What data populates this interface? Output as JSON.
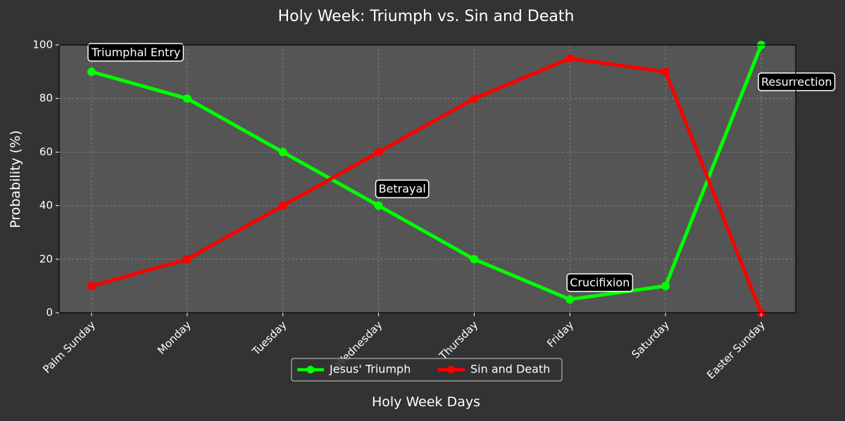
{
  "chart_data": {
    "type": "line",
    "title": "Holy Week: Triumph vs. Sin and Death",
    "xlabel": "Holy Week Days",
    "ylabel": "Probability (%)",
    "categories": [
      "Palm Sunday",
      "Monday",
      "Tuesday",
      "Wednesday",
      "Thursday",
      "Friday",
      "Saturday",
      "Easter Sunday"
    ],
    "ylim": [
      0,
      100
    ],
    "yticks": [
      0,
      20,
      40,
      60,
      80,
      100
    ],
    "grid": true,
    "legend_position": "bottom-center",
    "background": "#333333",
    "plot_background": "#555555",
    "series": [
      {
        "name": "Jesus' Triumph",
        "color": "#00ff00",
        "values": [
          90,
          80,
          60,
          40,
          20,
          5,
          10,
          100
        ]
      },
      {
        "name": "Sin and Death",
        "color": "#ff0000",
        "values": [
          10,
          20,
          40,
          60,
          80,
          95,
          90,
          0
        ]
      }
    ],
    "annotations": [
      {
        "text": "Triumphal Entry",
        "category": "Palm Sunday",
        "y": 97
      },
      {
        "text": "Betrayal",
        "category": "Wednesday",
        "y": 46
      },
      {
        "text": "Crucifixion",
        "category": "Friday",
        "y": 11
      },
      {
        "text": "Resurrection",
        "category": "Easter Sunday",
        "y": 86
      }
    ]
  }
}
